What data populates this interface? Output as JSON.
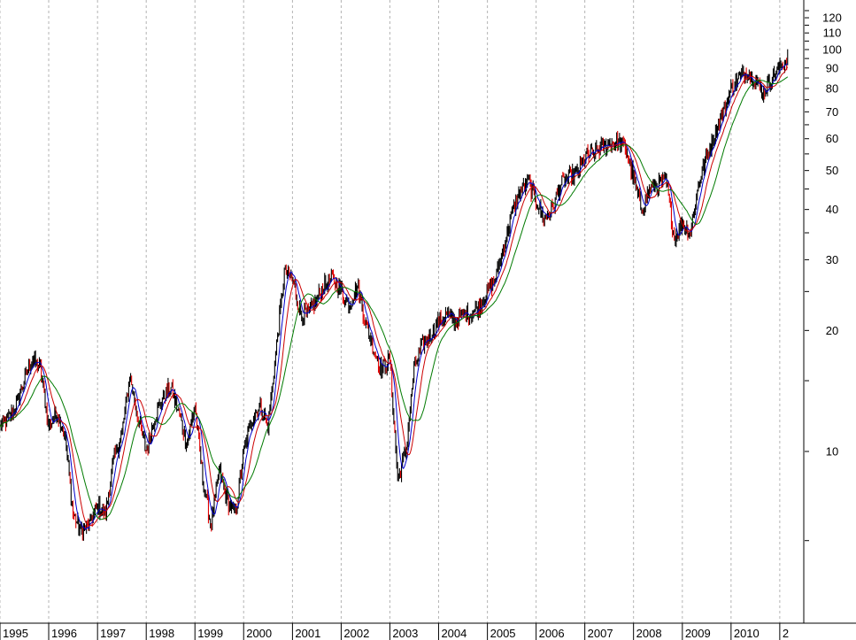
{
  "chart_data": {
    "type": "line",
    "title": "",
    "xlabel": "",
    "ylabel": "",
    "y_scale": "log",
    "ylim": [
      5.3,
      125
    ],
    "x_range": [
      "1995-01-01",
      "2011-06-30"
    ],
    "grid": "vertical-dashed-yearly",
    "y_tick_labels": [
      10,
      20,
      30,
      40,
      50,
      60,
      70,
      80,
      90,
      100,
      110,
      120
    ],
    "y_minor_ticks": [
      6,
      15,
      25,
      35,
      45,
      55,
      65,
      75,
      85,
      95,
      105,
      115,
      125
    ],
    "x_tick_labels": [
      "1995",
      "1996",
      "1997",
      "1998",
      "1999",
      "2000",
      "2001",
      "2002",
      "2003",
      "2004",
      "2005",
      "2006",
      "2007",
      "2008",
      "2009",
      "2010",
      "2"
    ],
    "colors": {
      "price": "#000000",
      "down_bars": "#e00000",
      "ma_short": "#0000cc",
      "ma_mid": "#cc0000",
      "ma_long": "#007a00",
      "grid": "#b4b4b4"
    },
    "series": [
      {
        "key": "price",
        "x": [
          "1995-01-01",
          "1995-03-01",
          "1995-05-01",
          "1995-07-01",
          "1995-09-01",
          "1995-11-01",
          "1996-01-01",
          "1996-03-01",
          "1996-05-01",
          "1996-07-01",
          "1996-09-01",
          "1996-11-01",
          "1997-01-01",
          "1997-03-01",
          "1997-05-01",
          "1997-07-01",
          "1997-09-01",
          "1997-11-01",
          "1998-01-01",
          "1998-03-01",
          "1998-05-01",
          "1998-07-01",
          "1998-09-01",
          "1998-11-01",
          "1999-01-01",
          "1999-03-01",
          "1999-05-01",
          "1999-07-01",
          "1999-09-01",
          "1999-11-01",
          "2000-01-01",
          "2000-03-01",
          "2000-05-01",
          "2000-07-01",
          "2000-09-01",
          "2000-11-01",
          "2001-01-01",
          "2001-03-01",
          "2001-05-01",
          "2001-07-01",
          "2001-09-01",
          "2001-11-01",
          "2002-01-01",
          "2002-03-01",
          "2002-05-01",
          "2002-07-01",
          "2002-09-01",
          "2002-11-01",
          "2003-01-01",
          "2003-03-01",
          "2003-05-01",
          "2003-07-01",
          "2003-09-01",
          "2003-11-01",
          "2004-01-01",
          "2004-03-01",
          "2004-05-01",
          "2004-07-01",
          "2004-09-01",
          "2004-11-01",
          "2005-01-01",
          "2005-03-01",
          "2005-05-01",
          "2005-07-01",
          "2005-09-01",
          "2005-11-01",
          "2006-01-01",
          "2006-03-01",
          "2006-05-01",
          "2006-07-01",
          "2006-09-01",
          "2006-11-01",
          "2007-01-01",
          "2007-03-01",
          "2007-05-01",
          "2007-07-01",
          "2007-09-01",
          "2007-11-01",
          "2008-01-01",
          "2008-03-01",
          "2008-05-01",
          "2008-07-01",
          "2008-09-01",
          "2008-11-01",
          "2009-01-01",
          "2009-03-01",
          "2009-05-01",
          "2009-07-01",
          "2009-09-01",
          "2009-11-01",
          "2010-01-01",
          "2010-03-01",
          "2010-05-01",
          "2010-07-01",
          "2010-09-01",
          "2010-11-01",
          "2011-01-01",
          "2011-03-01"
        ],
        "values": [
          11.5,
          12.0,
          13.0,
          15.0,
          17.0,
          16.0,
          11.5,
          12.5,
          11.0,
          7.0,
          6.3,
          6.6,
          7.3,
          7.0,
          9.5,
          11.0,
          15.5,
          12.0,
          10.0,
          12.0,
          13.5,
          14.5,
          12.5,
          10.5,
          13.0,
          8.5,
          6.5,
          9.0,
          7.5,
          7.0,
          10.0,
          12.0,
          13.0,
          11.5,
          18.0,
          28.0,
          27.0,
          22.0,
          22.0,
          24.0,
          26.0,
          27.0,
          25.0,
          23.0,
          26.0,
          21.0,
          18.0,
          16.0,
          17.0,
          8.5,
          10.0,
          16.0,
          18.5,
          19.5,
          21.0,
          22.0,
          21.0,
          22.0,
          22.0,
          23.0,
          25.0,
          27.0,
          32.0,
          39.0,
          44.0,
          47.0,
          42.0,
          38.0,
          40.0,
          46.0,
          48.0,
          49.0,
          54.0,
          55.0,
          57.0,
          58.0,
          59.0,
          57.0,
          48.0,
          40.0,
          45.0,
          46.0,
          47.0,
          34.0,
          37.0,
          35.0,
          46.0,
          54.0,
          62.0,
          70.0,
          80.0,
          85.0,
          88.0,
          84.0,
          78.0,
          85.0,
          90.0,
          96.0
        ]
      },
      {
        "key": "ma_short",
        "name": ""
      },
      {
        "key": "ma_mid",
        "name": ""
      },
      {
        "key": "ma_long",
        "name": ""
      }
    ]
  }
}
